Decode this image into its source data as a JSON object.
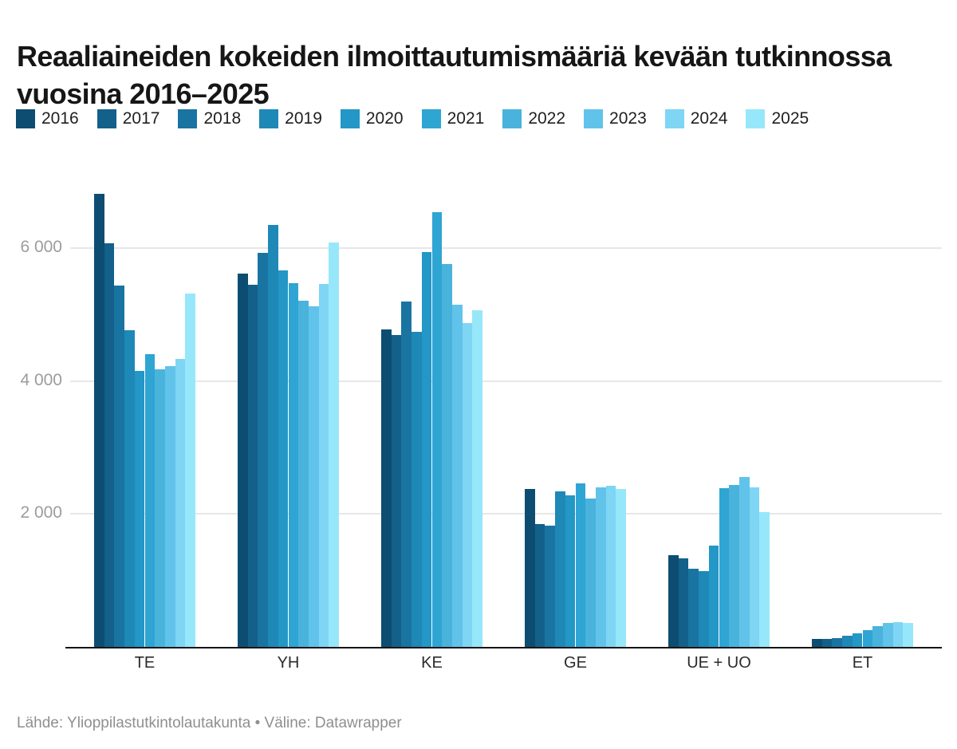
{
  "title": "Reaaliaineiden kokeiden ilmoittautumismääriä kevään tutkinnossa vuosina 2016–2025",
  "footer": "Lähde: Ylioppilastutkintolautakunta • Väline: Datawrapper",
  "chart_data": {
    "type": "bar",
    "grouped": true,
    "title": "Reaaliaineiden kokeiden ilmoittautumismääriä kevään tutkinnossa vuosina 2016–2025",
    "xlabel": "",
    "ylabel": "",
    "ylim": [
      0,
      7000
    ],
    "grid": true,
    "legend_position": "top",
    "categories": [
      "TE",
      "YH",
      "KE",
      "GE",
      "UE + UO",
      "ET"
    ],
    "yticks": [
      {
        "value": 2000,
        "label": "2 000"
      },
      {
        "value": 4000,
        "label": "4 000"
      },
      {
        "value": 6000,
        "label": "6 000"
      }
    ],
    "series": [
      {
        "name": "2016",
        "color": "#0d4d71",
        "values": [
          6815,
          5615,
          4775,
          2375,
          1385,
          115
        ]
      },
      {
        "name": "2017",
        "color": "#13608a",
        "values": [
          6075,
          5450,
          4690,
          1850,
          1335,
          125
        ]
      },
      {
        "name": "2018",
        "color": "#1974a1",
        "values": [
          5440,
          5925,
          5195,
          1825,
          1175,
          135
        ]
      },
      {
        "name": "2019",
        "color": "#1e88b7",
        "values": [
          4760,
          6345,
          4745,
          2335,
          1135,
          165
        ]
      },
      {
        "name": "2020",
        "color": "#2397c6",
        "values": [
          4150,
          5670,
          5935,
          2275,
          1525,
          210
        ]
      },
      {
        "name": "2021",
        "color": "#2fa5d3",
        "values": [
          4400,
          5475,
          6545,
          2465,
          2385,
          255
        ]
      },
      {
        "name": "2022",
        "color": "#49b3dc",
        "values": [
          4175,
          5205,
          5755,
          2235,
          2435,
          315
        ]
      },
      {
        "name": "2023",
        "color": "#61c3ea",
        "values": [
          4225,
          5130,
          5145,
          2405,
          2555,
          355
        ]
      },
      {
        "name": "2024",
        "color": "#7fd5f4",
        "values": [
          4330,
          5465,
          4875,
          2425,
          2395,
          375
        ]
      },
      {
        "name": "2025",
        "color": "#97e7fb",
        "values": [
          5320,
          6085,
          5070,
          2375,
          2025,
          355
        ]
      }
    ]
  }
}
